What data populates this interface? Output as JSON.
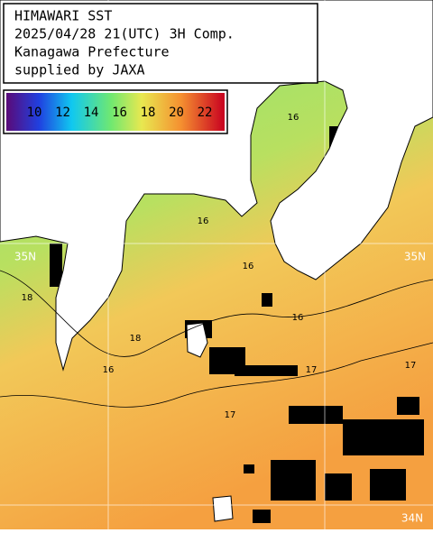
{
  "header": {
    "lines": [
      "HIMAWARI SST",
      "2025/04/28 21(UTC) 3H Comp.",
      "Kanagawa Prefecture",
      "supplied by JAXA"
    ]
  },
  "colorbar": {
    "labels": [
      "10",
      "12",
      "14",
      "16",
      "18",
      "20",
      "22"
    ]
  },
  "map": {
    "grid_labels": [
      "35N",
      "35N",
      "34N"
    ],
    "contour_labels": [
      "16",
      "16",
      "16",
      "16",
      "16",
      "17",
      "17",
      "17",
      "18",
      "18"
    ]
  }
}
